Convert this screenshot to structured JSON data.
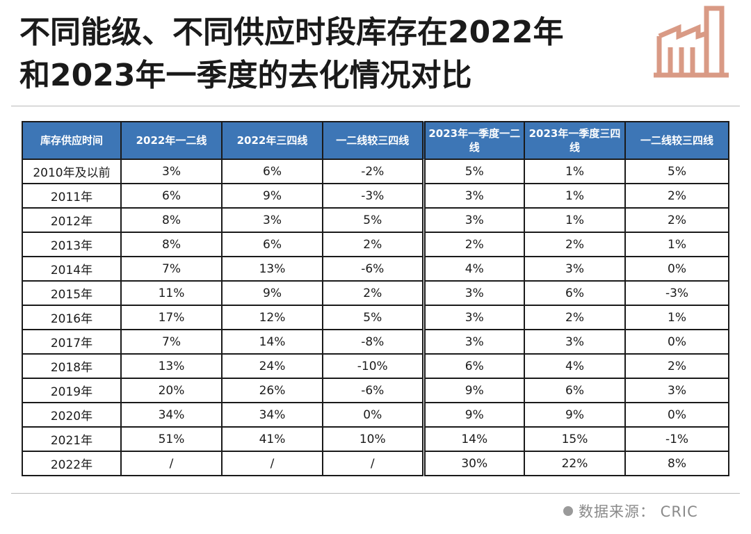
{
  "title_line1": "不同能级、不同供应时段库存在2022年",
  "title_line2": "和2023年一季度的去化情况对比",
  "logo_icon": "factory-icon",
  "logo_color": "#d99a85",
  "header_color": "#3d76b6",
  "green_color": "#1e9a48",
  "red_color": "#e0282e",
  "table": {
    "headers": [
      "库存供应时间",
      "2022年一二线",
      "2022年三四线",
      "一二线较三四线",
      "2023年一季度一二线",
      "2023年一季度三四线",
      "一二线较三四线"
    ],
    "rows": [
      {
        "label": "2010年及以前",
        "cells": [
          {
            "v": "3%",
            "c": ""
          },
          {
            "v": "6%",
            "c": ""
          },
          {
            "v": "-2%",
            "c": ""
          },
          {
            "v": "5%",
            "c": ""
          },
          {
            "v": "1%",
            "c": ""
          },
          {
            "v": "5%",
            "c": ""
          }
        ]
      },
      {
        "label": "2011年",
        "cells": [
          {
            "v": "6%",
            "c": ""
          },
          {
            "v": "9%",
            "c": ""
          },
          {
            "v": "-3%",
            "c": ""
          },
          {
            "v": "3%",
            "c": ""
          },
          {
            "v": "1%",
            "c": ""
          },
          {
            "v": "2%",
            "c": ""
          }
        ]
      },
      {
        "label": "2012年",
        "cells": [
          {
            "v": "8%",
            "c": ""
          },
          {
            "v": "3%",
            "c": ""
          },
          {
            "v": "5%",
            "c": ""
          },
          {
            "v": "3%",
            "c": ""
          },
          {
            "v": "1%",
            "c": ""
          },
          {
            "v": "2%",
            "c": ""
          }
        ]
      },
      {
        "label": "2013年",
        "cells": [
          {
            "v": "8%",
            "c": ""
          },
          {
            "v": "6%",
            "c": ""
          },
          {
            "v": "2%",
            "c": ""
          },
          {
            "v": "2%",
            "c": ""
          },
          {
            "v": "2%",
            "c": ""
          },
          {
            "v": "1%",
            "c": ""
          }
        ]
      },
      {
        "label": "2014年",
        "cells": [
          {
            "v": "7%",
            "c": "green"
          },
          {
            "v": "13%",
            "c": "green"
          },
          {
            "v": "-6%",
            "c": "green"
          },
          {
            "v": "4%",
            "c": ""
          },
          {
            "v": "3%",
            "c": ""
          },
          {
            "v": "0%",
            "c": ""
          }
        ]
      },
      {
        "label": "2015年",
        "cells": [
          {
            "v": "11%",
            "c": ""
          },
          {
            "v": "9%",
            "c": ""
          },
          {
            "v": "2%",
            "c": ""
          },
          {
            "v": "3%",
            "c": ""
          },
          {
            "v": "6%",
            "c": ""
          },
          {
            "v": "-3%",
            "c": ""
          }
        ]
      },
      {
        "label": "2016年",
        "cells": [
          {
            "v": "17%",
            "c": ""
          },
          {
            "v": "12%",
            "c": ""
          },
          {
            "v": "5%",
            "c": ""
          },
          {
            "v": "3%",
            "c": ""
          },
          {
            "v": "2%",
            "c": ""
          },
          {
            "v": "1%",
            "c": ""
          }
        ]
      },
      {
        "label": "2017年",
        "cells": [
          {
            "v": "7%",
            "c": "green"
          },
          {
            "v": "14%",
            "c": "green"
          },
          {
            "v": "-8%",
            "c": "green"
          },
          {
            "v": "3%",
            "c": ""
          },
          {
            "v": "3%",
            "c": ""
          },
          {
            "v": "0%",
            "c": ""
          }
        ]
      },
      {
        "label": "2018年",
        "cells": [
          {
            "v": "13%",
            "c": "green"
          },
          {
            "v": "24%",
            "c": "green"
          },
          {
            "v": "-10%",
            "c": "green"
          },
          {
            "v": "6%",
            "c": ""
          },
          {
            "v": "4%",
            "c": ""
          },
          {
            "v": "2%",
            "c": ""
          }
        ]
      },
      {
        "label": "2019年",
        "cells": [
          {
            "v": "20%",
            "c": "green"
          },
          {
            "v": "26%",
            "c": "green"
          },
          {
            "v": "-6%",
            "c": "green"
          },
          {
            "v": "9%",
            "c": ""
          },
          {
            "v": "6%",
            "c": ""
          },
          {
            "v": "3%",
            "c": ""
          }
        ]
      },
      {
        "label": "2020年",
        "cells": [
          {
            "v": "34%",
            "c": ""
          },
          {
            "v": "34%",
            "c": ""
          },
          {
            "v": "0%",
            "c": ""
          },
          {
            "v": "9%",
            "c": ""
          },
          {
            "v": "9%",
            "c": ""
          },
          {
            "v": "0%",
            "c": ""
          }
        ]
      },
      {
        "label": "2021年",
        "cells": [
          {
            "v": "51%",
            "c": "red"
          },
          {
            "v": "41%",
            "c": "red"
          },
          {
            "v": "10%",
            "c": "red"
          },
          {
            "v": "14%",
            "c": ""
          },
          {
            "v": "15%",
            "c": ""
          },
          {
            "v": "-1%",
            "c": ""
          }
        ]
      },
      {
        "label": "2022年",
        "cells": [
          {
            "v": "/",
            "c": ""
          },
          {
            "v": "/",
            "c": ""
          },
          {
            "v": "/",
            "c": ""
          },
          {
            "v": "30%",
            "c": "red"
          },
          {
            "v": "22%",
            "c": "red"
          },
          {
            "v": "8%",
            "c": "red"
          }
        ]
      }
    ]
  },
  "source": "数据来源：  CRIC"
}
